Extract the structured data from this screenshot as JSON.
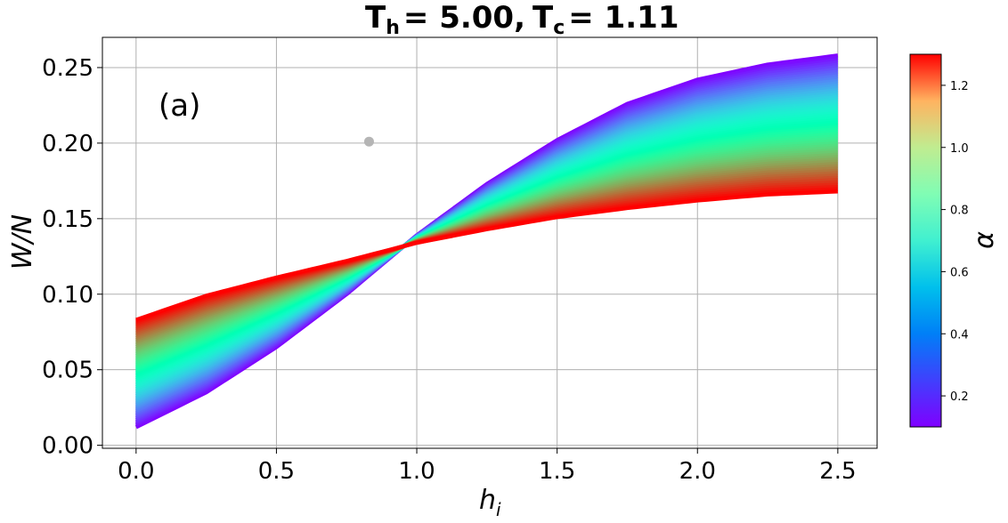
{
  "chart_data": {
    "type": "area",
    "title": "T_h = 5.00, T_c = 1.11",
    "title_parts": {
      "th_symbol": "T",
      "th_sub": "h",
      "th_value": "= 5.00,",
      "tc_symbol": "T",
      "tc_sub": "c",
      "tc_value": "= 1.11"
    },
    "panel_label": "(a)",
    "xlabel": "h",
    "xlabel_sub": "i",
    "ylabel": "W/N",
    "xlim": [
      -0.12,
      2.64
    ],
    "ylim": [
      -0.002,
      0.27
    ],
    "x_ticks": [
      "0.0",
      "0.5",
      "1.0",
      "1.5",
      "2.0",
      "2.5"
    ],
    "y_ticks": [
      "0.00",
      "0.05",
      "0.10",
      "0.15",
      "0.20",
      "0.25"
    ],
    "grid": true,
    "colorbar": {
      "label": "α",
      "range": [
        0.1,
        1.3
      ],
      "ticks": [
        "0.2",
        "0.4",
        "0.6",
        "0.8",
        "1.0",
        "1.2"
      ],
      "colormap": "rainbow"
    },
    "series": [
      {
        "alpha": 0.1,
        "x": [
          0.0,
          0.25,
          0.5,
          0.75,
          1.0,
          1.25,
          1.5,
          1.75,
          2.0,
          2.25,
          2.5
        ],
        "y": [
          0.012,
          0.035,
          0.065,
          0.1,
          0.139,
          0.173,
          0.202,
          0.226,
          0.242,
          0.252,
          0.258
        ]
      },
      {
        "alpha": 1.3,
        "x": [
          0.0,
          0.25,
          0.5,
          0.75,
          1.0,
          1.25,
          1.5,
          1.75,
          2.0,
          2.25,
          2.5
        ],
        "y": [
          0.083,
          0.099,
          0.111,
          0.122,
          0.134,
          0.143,
          0.151,
          0.157,
          0.162,
          0.166,
          0.168
        ]
      }
    ],
    "markers": [
      {
        "x": 0.83,
        "y": 0.201,
        "color": "#b5b5b5"
      }
    ]
  }
}
